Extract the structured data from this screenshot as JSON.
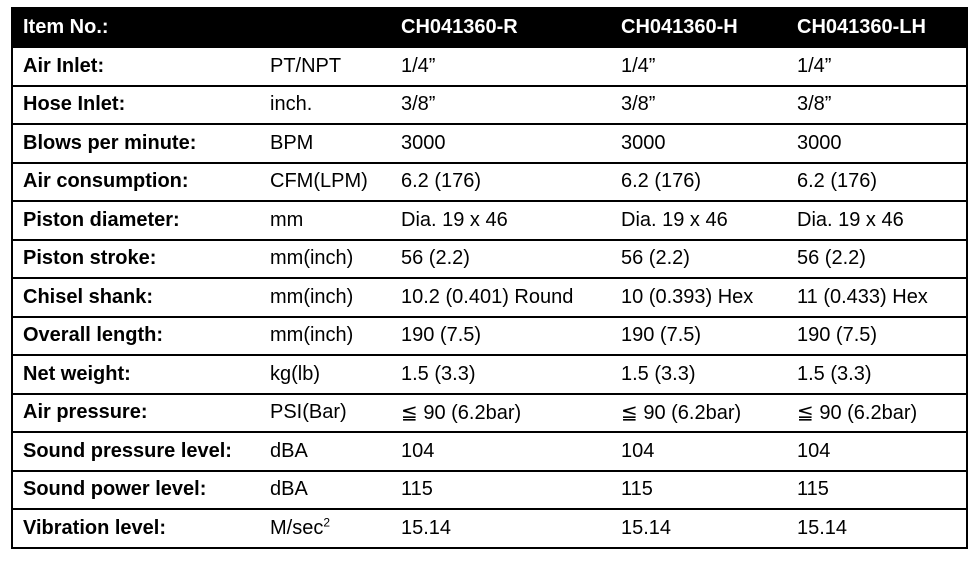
{
  "header": {
    "item_label": "Item No.:",
    "unit": "",
    "models": [
      "CH041360-R",
      "CH041360-H",
      "CH041360-LH"
    ]
  },
  "rows": [
    {
      "label": "Air Inlet:",
      "unit": "PT/NPT",
      "values": [
        "1/4”",
        "1/4”",
        "1/4”"
      ]
    },
    {
      "label": "Hose Inlet:",
      "unit": "inch.",
      "values": [
        "3/8”",
        "3/8”",
        "3/8”"
      ]
    },
    {
      "label": "Blows per minute:",
      "unit": "BPM",
      "values": [
        "3000",
        "3000",
        "3000"
      ]
    },
    {
      "label": "Air consumption:",
      "unit": "CFM(LPM)",
      "values": [
        "6.2 (176)",
        "6.2 (176)",
        "6.2 (176)"
      ]
    },
    {
      "label": "Piston diameter:",
      "unit": "mm",
      "values": [
        "Dia. 19 x 46",
        "Dia. 19 x 46",
        "Dia. 19 x 46"
      ]
    },
    {
      "label": "Piston stroke:",
      "unit": "mm(inch)",
      "values": [
        "56 (2.2)",
        "56 (2.2)",
        "56 (2.2)"
      ]
    },
    {
      "label": "Chisel shank:",
      "unit": "mm(inch)",
      "values": [
        "10.2 (0.401) Round",
        "10 (0.393) Hex",
        "11 (0.433) Hex"
      ]
    },
    {
      "label": "Overall length:",
      "unit": "mm(inch)",
      "values": [
        "190 (7.5)",
        "190 (7.5)",
        "190 (7.5)"
      ]
    },
    {
      "label": "Net weight:",
      "unit": "kg(lb)",
      "values": [
        "1.5 (3.3)",
        "1.5 (3.3)",
        "1.5 (3.3)"
      ]
    },
    {
      "label": "Air pressure:",
      "unit": "PSI(Bar)",
      "values": [
        "≦ 90 (6.2bar)",
        "≦ 90 (6.2bar)",
        "≦ 90 (6.2bar)"
      ]
    },
    {
      "label": "Sound pressure level:",
      "unit": "dBA",
      "values": [
        "104",
        "104",
        "104"
      ]
    },
    {
      "label": "Sound power level:",
      "unit": "dBA",
      "values": [
        "115",
        "115",
        "115"
      ]
    },
    {
      "label": "Vibration level:",
      "unit": "M/sec",
      "unit_sup": "2",
      "values": [
        "15.14",
        "15.14",
        "15.14"
      ]
    }
  ]
}
